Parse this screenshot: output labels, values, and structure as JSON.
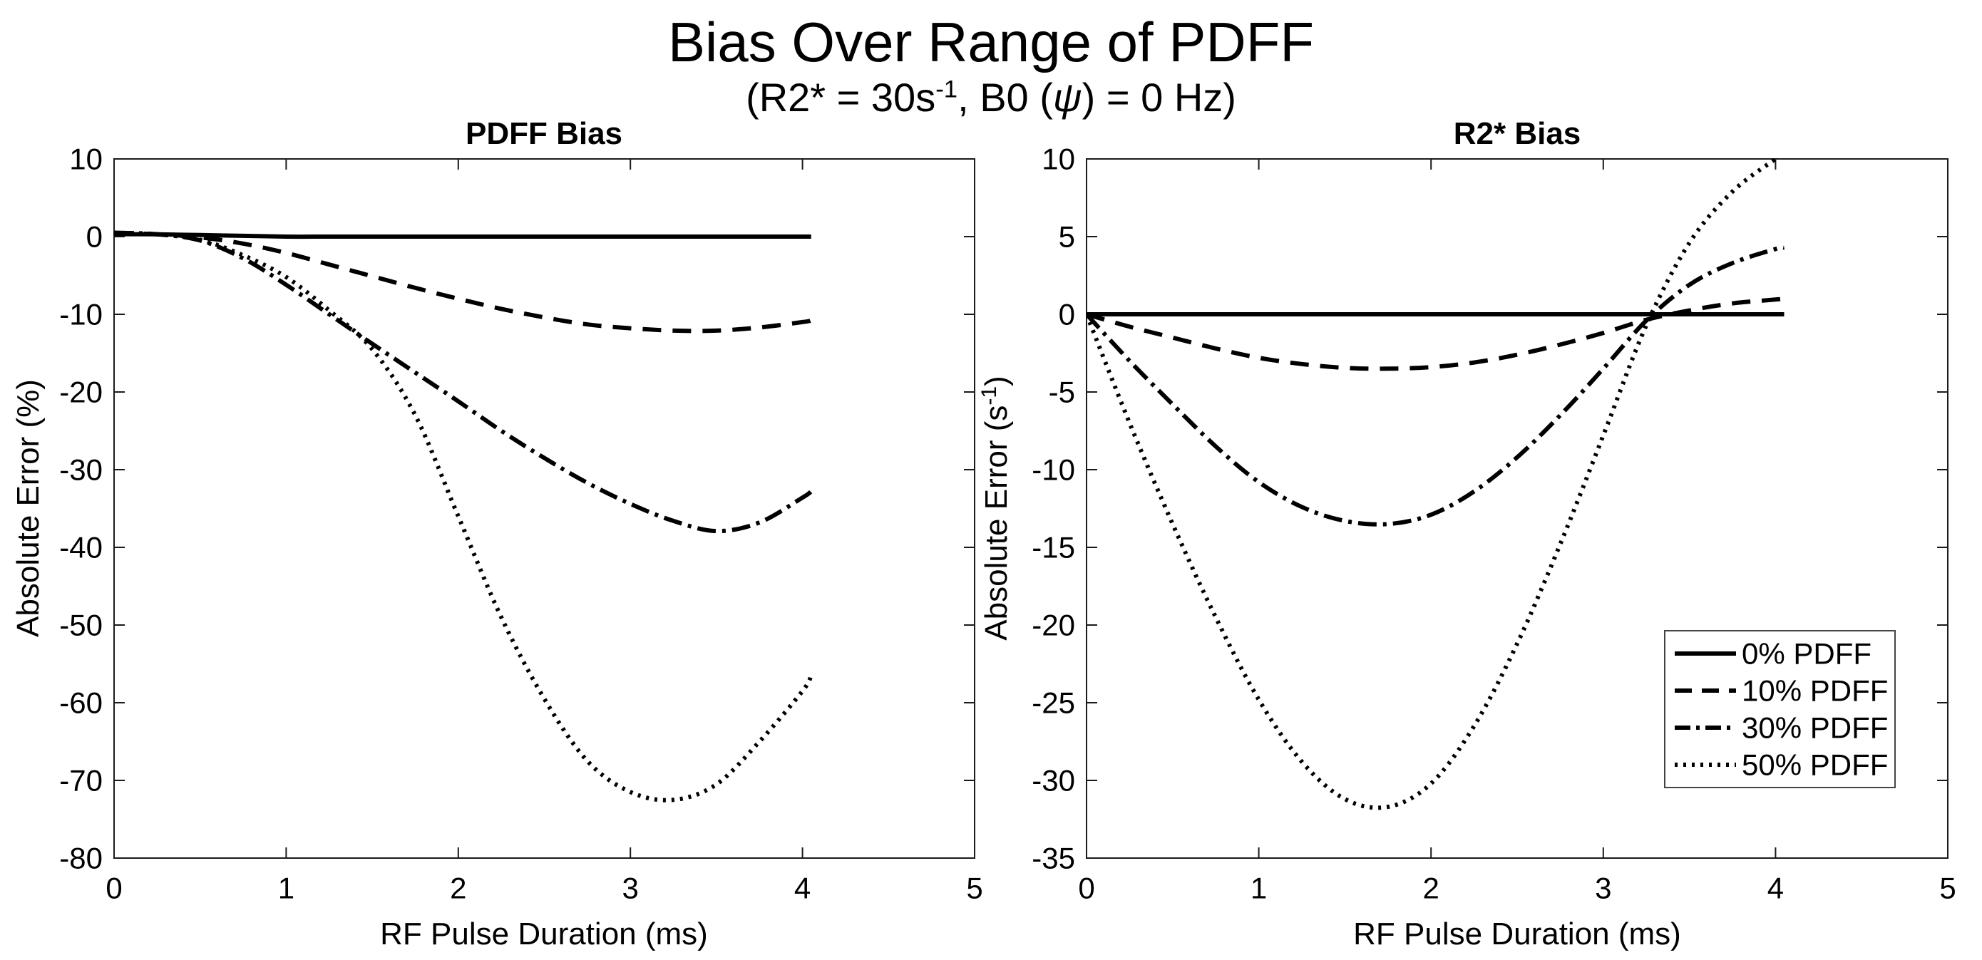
{
  "figure": {
    "suptitle": "Bias Over Range of PDFF",
    "subtitle_parts": {
      "prefix": "(R2* = 30s",
      "sup": "-1",
      "mid": ", B0 (",
      "psi": "ψ",
      "suffix": ") = 0 Hz)"
    }
  },
  "legend": {
    "position": "lower-right-of-right-plot",
    "entries": [
      {
        "label": "0% PDFF",
        "style": "solid"
      },
      {
        "label": "10% PDFF",
        "style": "dashed"
      },
      {
        "label": "30% PDFF",
        "style": "dashdot"
      },
      {
        "label": "50% PDFF",
        "style": "dotted"
      }
    ]
  },
  "chart_data": [
    {
      "type": "line",
      "title": "PDFF Bias",
      "xlabel": "RF Pulse Duration (ms)",
      "ylabel": "Absolute Error (%)",
      "xlim": [
        0,
        5
      ],
      "ylim": [
        -80,
        10
      ],
      "xticks": [
        0,
        1,
        2,
        3,
        4,
        5
      ],
      "yticks": [
        10,
        0,
        -10,
        -20,
        -30,
        -40,
        -50,
        -60,
        -70,
        -80
      ],
      "grid": false,
      "line_color": "#000000",
      "x": [
        0,
        0.25,
        0.5,
        0.75,
        1,
        1.25,
        1.5,
        1.75,
        2,
        2.25,
        2.5,
        2.75,
        3,
        3.25,
        3.5,
        3.75,
        4,
        4.05
      ],
      "series": [
        {
          "name": "0% PDFF",
          "style": "solid",
          "values": [
            0.3,
            0.3,
            0.2,
            0.1,
            0,
            0,
            0,
            0,
            0,
            0,
            0,
            0,
            0,
            0,
            0,
            0,
            0,
            0
          ]
        },
        {
          "name": "10% PDFF",
          "style": "dashed",
          "values": [
            0.5,
            0.3,
            -0.1,
            -0.9,
            -2.1,
            -3.6,
            -5.1,
            -6.6,
            -8,
            -9.3,
            -10.4,
            -11.3,
            -11.8,
            -12.1,
            -12.1,
            -11.7,
            -11,
            -10.8
          ]
        },
        {
          "name": "30% PDFF",
          "style": "dashdot",
          "values": [
            0.5,
            0.3,
            -0.5,
            -2.8,
            -6.2,
            -10,
            -13.8,
            -17.5,
            -21.2,
            -25,
            -28.5,
            -31.7,
            -34.4,
            -36.6,
            -37.9,
            -36.8,
            -33.6,
            -32.8
          ]
        },
        {
          "name": "50% PDFF",
          "style": "dotted",
          "values": [
            0.5,
            0.3,
            -0.4,
            -2.4,
            -5.2,
            -9.5,
            -14.5,
            -23,
            -36,
            -49,
            -59.5,
            -67.5,
            -71.5,
            -72.5,
            -70.5,
            -65,
            -58.5,
            -56.5
          ]
        }
      ]
    },
    {
      "type": "line",
      "title": "R2* Bias",
      "xlabel": "RF Pulse Duration (ms)",
      "ylabel_parts": {
        "prefix": "Absolute Error (s",
        "sup": "-1",
        "suffix": ")"
      },
      "xlim": [
        0,
        5
      ],
      "ylim": [
        -35,
        10
      ],
      "xticks": [
        0,
        1,
        2,
        3,
        4,
        5
      ],
      "yticks": [
        10,
        5,
        0,
        -5,
        -10,
        -15,
        -20,
        -25,
        -30,
        -35
      ],
      "grid": false,
      "line_color": "#000000",
      "x": [
        0,
        0.25,
        0.5,
        0.75,
        1,
        1.25,
        1.5,
        1.75,
        2,
        2.25,
        2.5,
        2.75,
        3,
        3.25,
        3.5,
        3.75,
        4,
        4.05
      ],
      "series": [
        {
          "name": "0% PDFF",
          "style": "solid",
          "values": [
            0,
            0,
            0,
            0,
            0,
            0,
            0,
            0,
            0,
            0,
            0,
            0,
            0,
            0,
            0,
            0,
            0,
            0
          ]
        },
        {
          "name": "10% PDFF",
          "style": "dashed",
          "values": [
            0,
            -0.8,
            -1.5,
            -2.2,
            -2.8,
            -3.2,
            -3.45,
            -3.5,
            -3.4,
            -3.1,
            -2.6,
            -1.95,
            -1.2,
            -0.35,
            0.25,
            0.7,
            0.95,
            1
          ]
        },
        {
          "name": "30% PDFF",
          "style": "dashdot",
          "values": [
            0,
            -3,
            -5.8,
            -8.5,
            -10.8,
            -12.4,
            -13.3,
            -13.5,
            -12.9,
            -11.4,
            -9.2,
            -6.5,
            -3.5,
            -0.4,
            1.9,
            3.3,
            4.2,
            4.3
          ]
        },
        {
          "name": "50% PDFF",
          "style": "dotted",
          "values": [
            0,
            -7,
            -13.5,
            -19.5,
            -24.8,
            -28.8,
            -31.2,
            -31.7,
            -30.2,
            -26.5,
            -21.2,
            -14.8,
            -7.8,
            -0.7,
            4.6,
            7.9,
            10,
            10.4
          ]
        }
      ]
    }
  ]
}
